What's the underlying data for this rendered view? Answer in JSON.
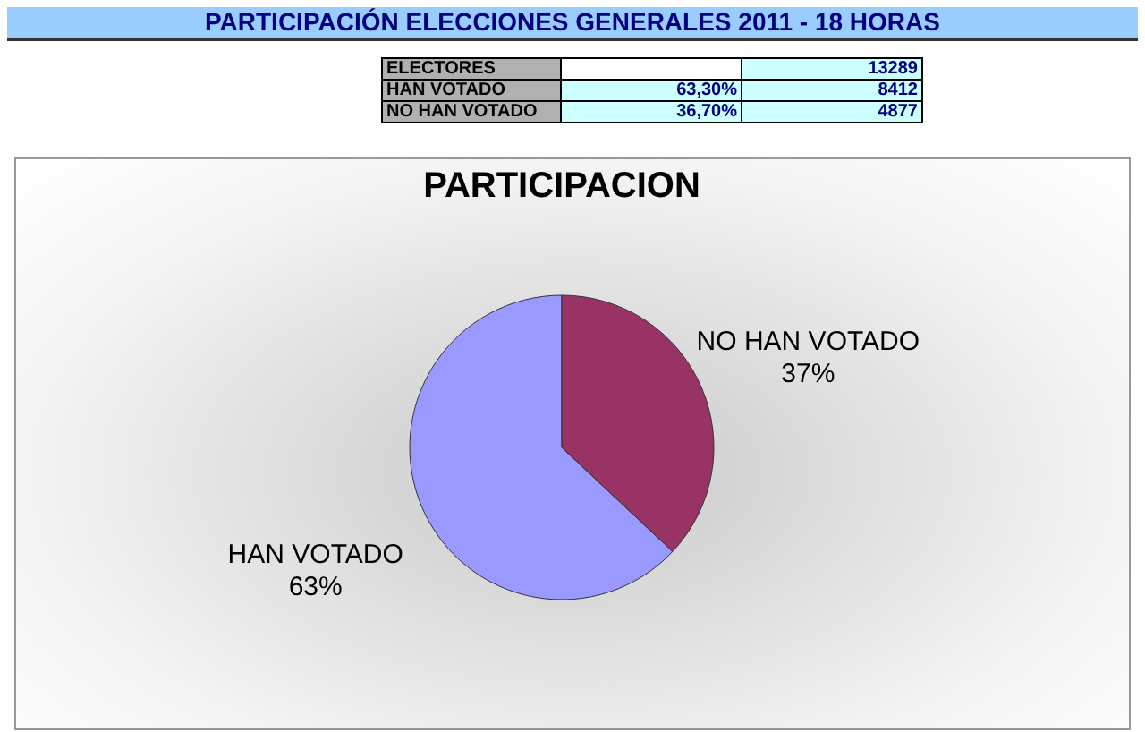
{
  "chart_data": {
    "type": "pie",
    "title": "PARTICIPACIÓN ELECCIONES GENERALES 2011 - 18 HORAS",
    "subtitle": "PARTICIPACION",
    "categories": [
      "HAN VOTADO",
      "NO HAN VOTADO"
    ],
    "values": [
      63,
      37
    ],
    "colors": [
      "#9999ff",
      "#993366"
    ],
    "value_labels": [
      "63%",
      "37%"
    ],
    "annotations": [
      "ELECTORES",
      "13289",
      "63,30%",
      "8412",
      "36,70%",
      "4877"
    ],
    "legend": false
  }
}
